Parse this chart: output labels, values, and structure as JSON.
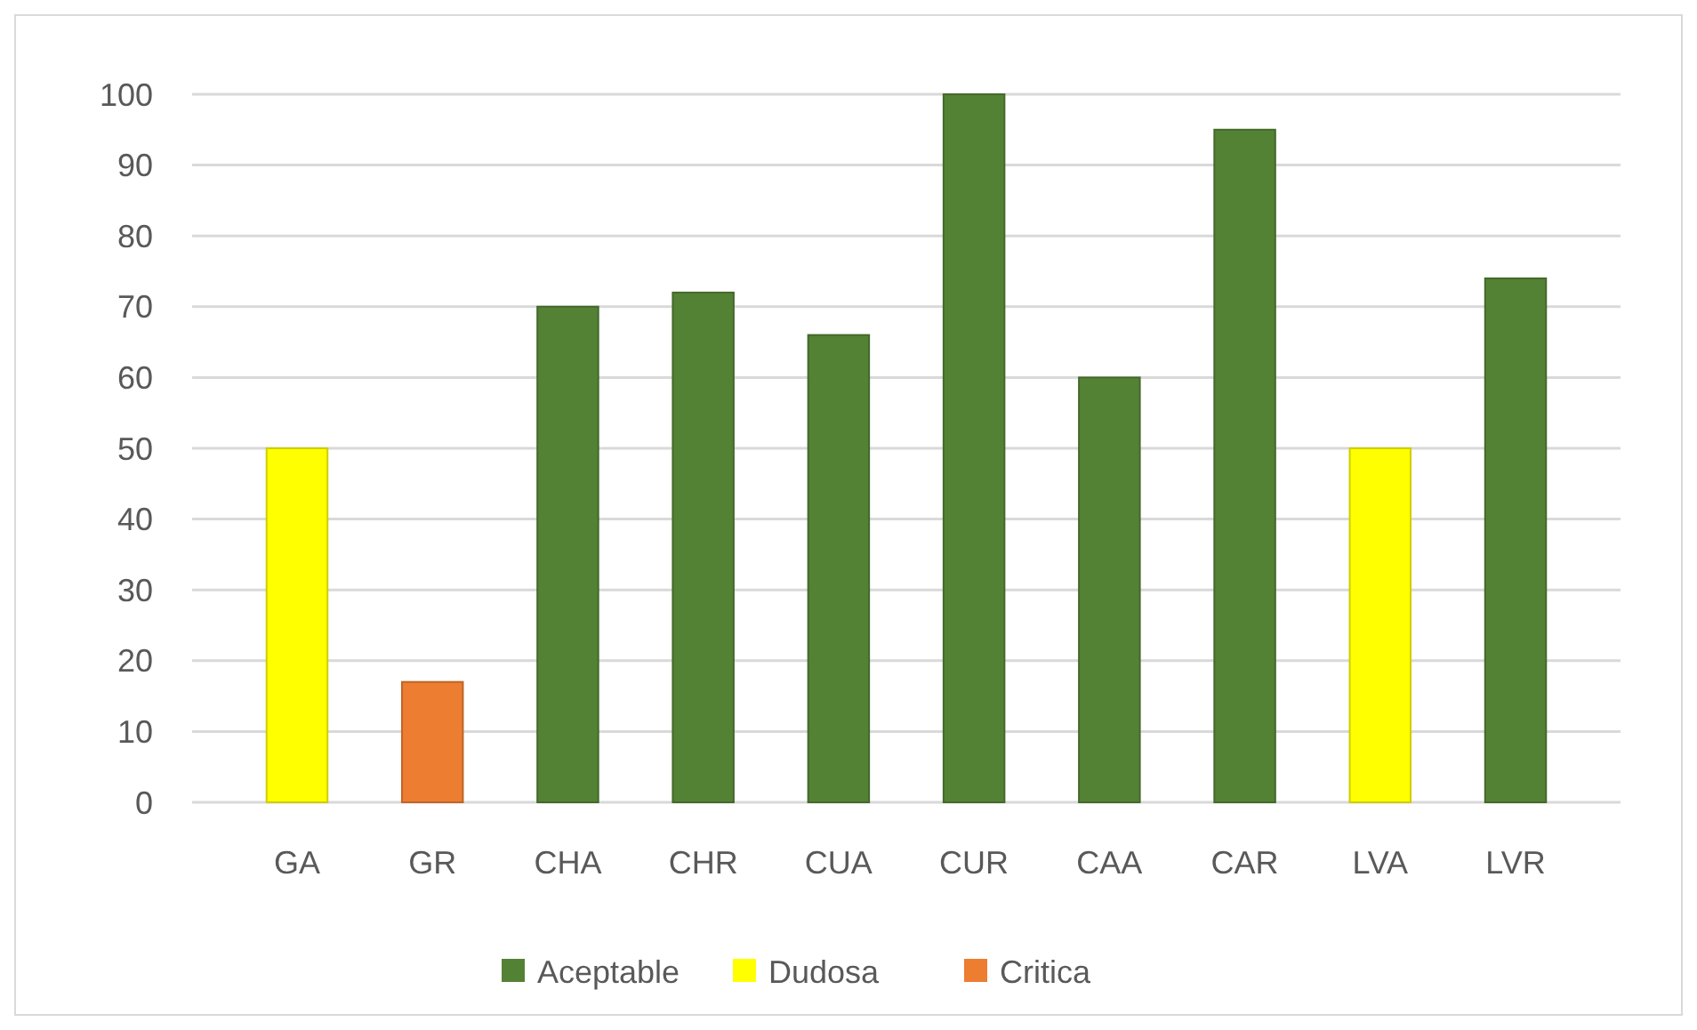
{
  "chart_data": {
    "type": "bar",
    "stacked": true,
    "categories": [
      "GA",
      "GR",
      "CHA",
      "CHR",
      "CUA",
      "CUR",
      "CAA",
      "CAR",
      "LVA",
      "LVR"
    ],
    "series": [
      {
        "name": "Aceptable",
        "color": "#548235",
        "values": [
          null,
          null,
          70,
          72,
          66,
          100,
          60,
          95,
          null,
          74
        ]
      },
      {
        "name": "Dudosa",
        "color": "#ffff00",
        "values": [
          50,
          null,
          null,
          null,
          null,
          null,
          null,
          null,
          50,
          null
        ]
      },
      {
        "name": "Critica",
        "color": "#ed7d31",
        "values": [
          null,
          17,
          null,
          null,
          null,
          null,
          null,
          null,
          null,
          null
        ]
      }
    ],
    "ylim": [
      0,
      100
    ],
    "yticks": [
      0,
      10,
      20,
      30,
      40,
      50,
      60,
      70,
      80,
      90,
      100
    ],
    "grid": "y",
    "legend": "bottom"
  }
}
